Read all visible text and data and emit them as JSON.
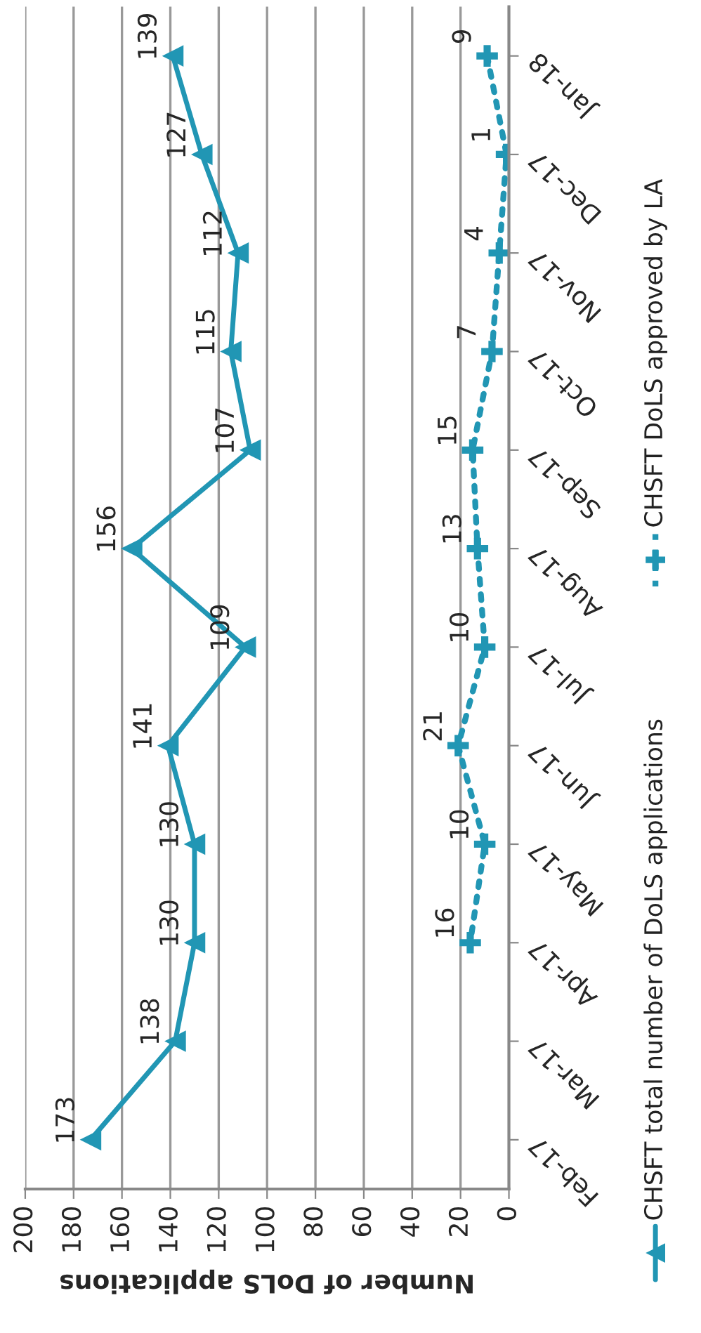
{
  "chart_data": {
    "type": "line",
    "orientation": "horizontal",
    "xlabel": "Number of DoLS applications",
    "categories": [
      "Jan-18",
      "Dec-17",
      "Nov-17",
      "Oct-17",
      "Sep-17",
      "Aug-17",
      "Jul-17",
      "Jun-17",
      "May-17",
      "Apr-17",
      "Mar-17",
      "Feb-17"
    ],
    "series": [
      {
        "name": "CHSFT total number of DoLS applications",
        "color": "#2196b4",
        "marker": "triangle",
        "line_style": "solid",
        "values": [
          139,
          127,
          112,
          115,
          107,
          156,
          109,
          141,
          130,
          130,
          138,
          173
        ]
      },
      {
        "name": "CHSFT DoLS approved by LA",
        "color": "#2196b4",
        "marker": "cross",
        "line_style": "dotted",
        "values": [
          9,
          1,
          4,
          7,
          15,
          13,
          10,
          21,
          10,
          16,
          null,
          null
        ]
      }
    ],
    "xlim": [
      200,
      0
    ],
    "xticks": [
      200,
      180,
      160,
      140,
      120,
      100,
      80,
      60,
      40,
      20,
      0
    ],
    "grid": "x",
    "legend": "right",
    "data_labels": true
  }
}
